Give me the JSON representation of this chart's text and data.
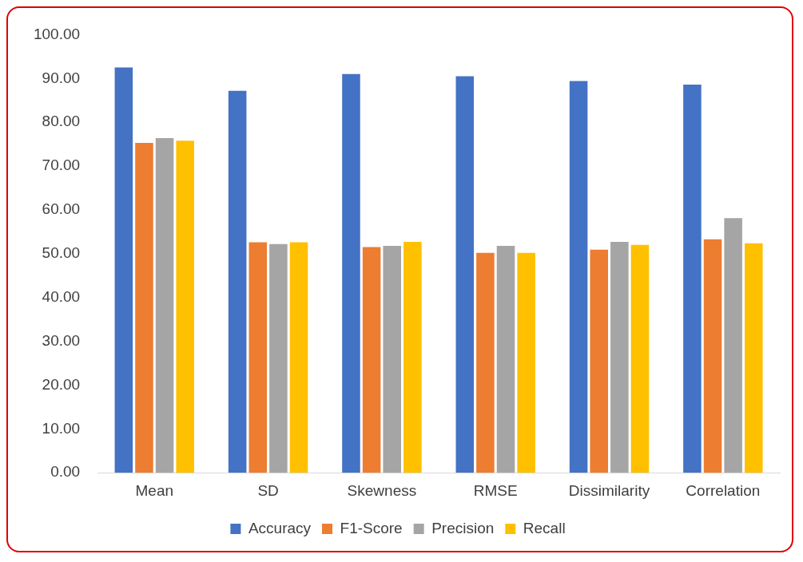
{
  "chart_data": {
    "type": "bar",
    "categories": [
      "Mean",
      "SD",
      "Skewness",
      "RMSE",
      "Dissimilarity",
      "Correlation"
    ],
    "series": [
      {
        "name": "Accuracy",
        "color": "#4472c4",
        "values": [
          92.5,
          87.2,
          91.0,
          90.5,
          89.4,
          88.6
        ]
      },
      {
        "name": "F1-Score",
        "color": "#ed7d31",
        "values": [
          75.3,
          52.6,
          51.5,
          50.2,
          50.9,
          53.3
        ]
      },
      {
        "name": "Precision",
        "color": "#a5a5a5",
        "values": [
          76.4,
          52.2,
          51.8,
          51.8,
          52.7,
          58.1
        ]
      },
      {
        "name": "Recall",
        "color": "#ffc000",
        "values": [
          75.8,
          52.6,
          52.7,
          50.2,
          52.0,
          52.4
        ]
      }
    ],
    "ylim": [
      0,
      100
    ],
    "yticks": [
      {
        "value": 0,
        "label": "0.00"
      },
      {
        "value": 10,
        "label": "10.00"
      },
      {
        "value": 20,
        "label": "20.00"
      },
      {
        "value": 30,
        "label": "30.00"
      },
      {
        "value": 40,
        "label": "40.00"
      },
      {
        "value": 50,
        "label": "50.00"
      },
      {
        "value": 60,
        "label": "60.00"
      },
      {
        "value": 70,
        "label": "70.00"
      },
      {
        "value": 80,
        "label": "80.00"
      },
      {
        "value": 90,
        "label": "90.00"
      },
      {
        "value": 100,
        "label": "100.00"
      }
    ],
    "grid": false,
    "legend": "bottom"
  }
}
